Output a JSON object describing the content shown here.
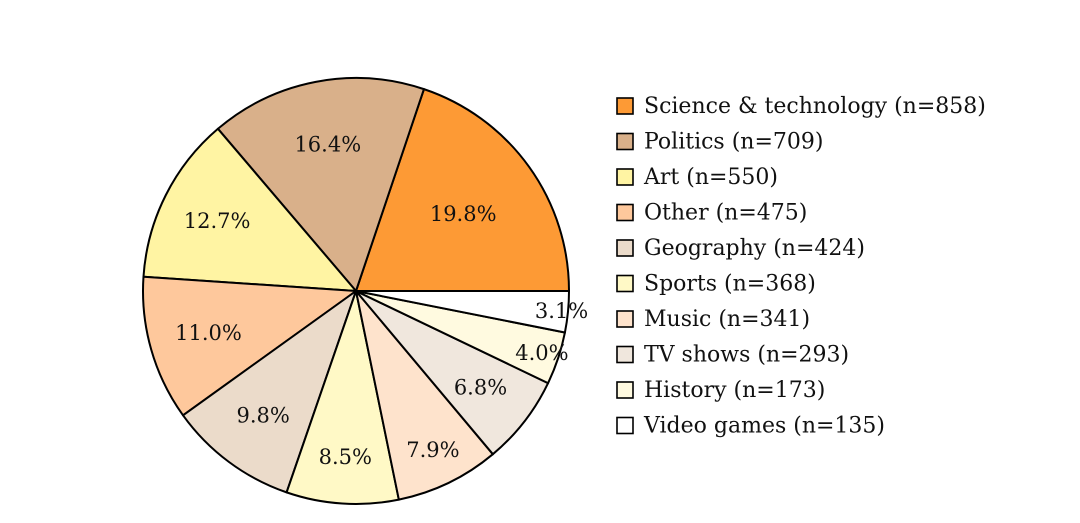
{
  "chart_data": {
    "type": "pie",
    "title": "",
    "start_angle_deg": 0,
    "direction": "counterclockwise",
    "slices": [
      {
        "name": "Science & technology",
        "count": 858,
        "percent_label": "19.8%",
        "color": "#fd9a35",
        "legend_label": "Science & technology (n=858)"
      },
      {
        "name": "Politics",
        "count": 709,
        "percent_label": "16.4%",
        "color": "#d9b08a",
        "legend_label": "Politics (n=709)"
      },
      {
        "name": "Art",
        "count": 550,
        "percent_label": "12.7%",
        "color": "#fff4a3",
        "legend_label": "Art (n=550)"
      },
      {
        "name": "Other",
        "count": 475,
        "percent_label": "11.0%",
        "color": "#fec89c",
        "legend_label": "Other (n=475)"
      },
      {
        "name": "Geography",
        "count": 424,
        "percent_label": "9.8%",
        "color": "#ebdbca",
        "legend_label": "Geography (n=424)"
      },
      {
        "name": "Sports",
        "count": 368,
        "percent_label": "8.5%",
        "color": "#fff9c6",
        "legend_label": "Sports (n=368)"
      },
      {
        "name": "Music",
        "count": 341,
        "percent_label": "7.9%",
        "color": "#fee3cc",
        "legend_label": "Music (n=341)"
      },
      {
        "name": "TV shows",
        "count": 293,
        "percent_label": "6.8%",
        "color": "#f0e7dd",
        "legend_label": "TV shows (n=293)"
      },
      {
        "name": "History",
        "count": 173,
        "percent_label": "4.0%",
        "color": "#fffae0",
        "legend_label": "History (n=173)"
      },
      {
        "name": "Video games",
        "count": 135,
        "percent_label": "3.1%",
        "color": "#ffffff",
        "legend_label": "Video games (n=135)"
      }
    ],
    "legend_position": "right"
  }
}
